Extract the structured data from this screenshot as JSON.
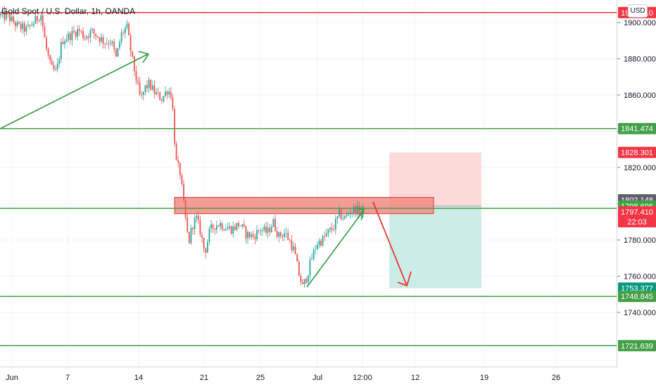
{
  "header": {
    "title": "Gold Spot / U.S. Dollar, 1h, OANDA",
    "currency": "USD"
  },
  "colors": {
    "up_candle": "#26a69a",
    "down_candle": "#ef5350",
    "support_line": "#43a047",
    "resistance_line": "#e53935",
    "zone_fill": "#f28b82",
    "zone_border": "#e53935",
    "stop_fill": "#fbd3d3",
    "target_fill": "#c6ebe4",
    "arrow_green": "#2e9e3e",
    "arrow_red": "#e53935"
  },
  "chart_data": {
    "type": "candlestick",
    "symbol": "Gold Spot / U.S. Dollar",
    "interval": "1h",
    "source": "OANDA",
    "ylim": [
      1709,
      1910
    ],
    "y_ticks": [
      1740,
      1760,
      1780,
      1800,
      1820,
      1840,
      1860,
      1880,
      1900
    ],
    "x_ticks": [
      "Jun",
      "7",
      "14",
      "21",
      "25",
      "Jul",
      "12:00",
      "12",
      "19",
      "26"
    ],
    "horizontal_lines": [
      {
        "price": 1905.5,
        "label": "1905.510",
        "color": "red"
      },
      {
        "price": 1841.474,
        "label": "1841.474",
        "color": "green"
      },
      {
        "price": 1797.41,
        "label": "1797.410",
        "color": "green"
      },
      {
        "price": 1748.845,
        "label": "1748.845",
        "color": "green"
      },
      {
        "price": 1721.639,
        "label": "1721.639",
        "color": "green"
      }
    ],
    "price_labels": [
      {
        "text": "1828.301",
        "price": 1828.301,
        "color": "red"
      },
      {
        "text": "1802.148",
        "price": 1802.148,
        "color": "gray"
      },
      {
        "text": "1798.696",
        "price": 1798.696,
        "color": "green"
      },
      {
        "text": "1797.410",
        "price": 1795.5,
        "color": "red",
        "sub": "22:03"
      },
      {
        "text": "1753.377",
        "price": 1753.377,
        "color": "teal"
      },
      {
        "text": "1748.845",
        "price": 1748.845,
        "color": "green"
      },
      {
        "text": "1841.474",
        "price": 1841.474,
        "color": "green"
      },
      {
        "text": "1721.639",
        "price": 1721.639,
        "color": "green"
      }
    ],
    "supply_zone": {
      "top": 1803.5,
      "bottom": 1794.5
    },
    "short_position": {
      "entry": 1798.696,
      "stop": 1828.301,
      "target": 1753.377
    },
    "candles_from_x": 0,
    "candles_to_x": 516,
    "anchor_path": [
      [
        0,
        1904
      ],
      [
        12,
        1903
      ],
      [
        25,
        1898
      ],
      [
        38,
        1896
      ],
      [
        50,
        1901
      ],
      [
        58,
        1905
      ],
      [
        65,
        1887
      ],
      [
        72,
        1875
      ],
      [
        80,
        1872
      ],
      [
        88,
        1890
      ],
      [
        100,
        1893
      ],
      [
        112,
        1896
      ],
      [
        120,
        1892
      ],
      [
        130,
        1895
      ],
      [
        140,
        1892
      ],
      [
        150,
        1889
      ],
      [
        158,
        1890
      ],
      [
        165,
        1880
      ],
      [
        172,
        1893
      ],
      [
        180,
        1898
      ],
      [
        188,
        1879
      ],
      [
        195,
        1866
      ],
      [
        200,
        1857
      ],
      [
        206,
        1864
      ],
      [
        212,
        1866
      ],
      [
        220,
        1861
      ],
      [
        230,
        1858
      ],
      [
        238,
        1863
      ],
      [
        244,
        1860
      ],
      [
        250,
        1823
      ],
      [
        256,
        1817
      ],
      [
        262,
        1796
      ],
      [
        268,
        1778
      ],
      [
        273,
        1788
      ],
      [
        279,
        1792
      ],
      [
        285,
        1784
      ],
      [
        291,
        1773
      ],
      [
        298,
        1785
      ],
      [
        305,
        1788
      ],
      [
        312,
        1789
      ],
      [
        320,
        1787
      ],
      [
        330,
        1786
      ],
      [
        340,
        1789
      ],
      [
        350,
        1783
      ],
      [
        360,
        1782
      ],
      [
        370,
        1786
      ],
      [
        380,
        1784
      ],
      [
        388,
        1790
      ],
      [
        396,
        1782
      ],
      [
        405,
        1784
      ],
      [
        412,
        1779
      ],
      [
        418,
        1774
      ],
      [
        424,
        1762
      ],
      [
        430,
        1754
      ],
      [
        436,
        1760
      ],
      [
        442,
        1769
      ],
      [
        450,
        1778
      ],
      [
        458,
        1780
      ],
      [
        466,
        1784
      ],
      [
        474,
        1787
      ],
      [
        482,
        1794
      ],
      [
        490,
        1792
      ],
      [
        498,
        1796
      ],
      [
        505,
        1797
      ],
      [
        512,
        1795
      ],
      [
        516,
        1797
      ]
    ]
  }
}
